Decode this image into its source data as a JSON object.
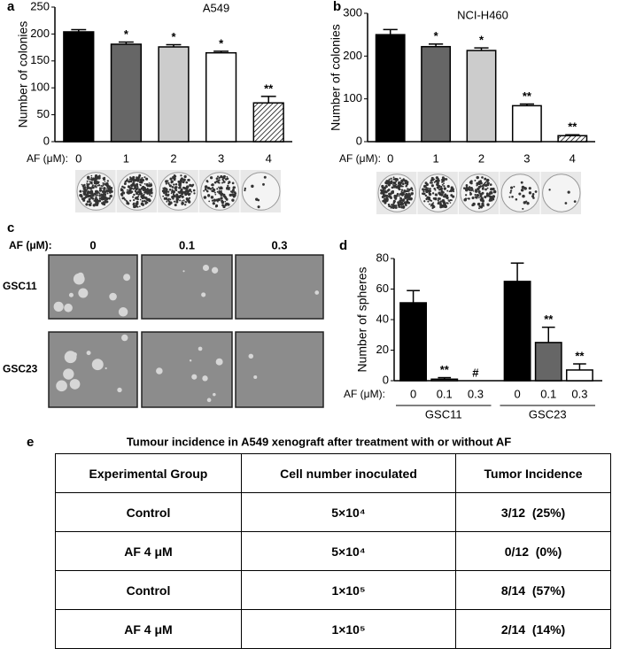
{
  "chart_data": [
    {
      "type": "bar",
      "panel": "a",
      "title": "A549",
      "ylabel": "Number of colonies",
      "x_label": "AF (μM):",
      "categories": [
        "0",
        "1",
        "2",
        "3",
        "4"
      ],
      "values": [
        204,
        181,
        176,
        165,
        72
      ],
      "errors": [
        4,
        4,
        4,
        3,
        12
      ],
      "annotations": [
        null,
        "*",
        "*",
        "*",
        "**"
      ],
      "colors": [
        "#000000",
        "#666666",
        "#cccccc",
        "#ffffff",
        "#ffffff"
      ],
      "patterns": [
        null,
        null,
        null,
        null,
        "hatch"
      ],
      "ylim": [
        0,
        250
      ],
      "yticks": [
        0,
        50,
        100,
        150,
        200,
        250
      ]
    },
    {
      "type": "bar",
      "panel": "b",
      "title": "NCI-H460",
      "ylabel": "Number of colonies",
      "x_label": "AF (μM):",
      "categories": [
        "0",
        "1",
        "2",
        "3",
        "4"
      ],
      "values": [
        250,
        222,
        213,
        84,
        14
      ],
      "errors": [
        12,
        6,
        6,
        4,
        2
      ],
      "annotations": [
        null,
        "*",
        "*",
        "**",
        "**"
      ],
      "colors": [
        "#000000",
        "#666666",
        "#cccccc",
        "#ffffff",
        "#ffffff"
      ],
      "patterns": [
        null,
        null,
        null,
        null,
        "hatch"
      ],
      "ylim": [
        0,
        300
      ],
      "yticks": [
        0,
        100,
        200,
        300
      ]
    },
    {
      "type": "bar",
      "panel": "d",
      "ylabel": "Number of spheres",
      "x_label": "AF (μM):",
      "categories": [
        "0",
        "0.1",
        "0.3",
        "0",
        "0.1",
        "0.3"
      ],
      "groups": [
        "GSC11",
        "GSC23"
      ],
      "values": [
        51,
        1,
        0,
        65,
        25,
        7
      ],
      "errors": [
        8,
        1,
        null,
        12,
        10,
        4
      ],
      "annotations": [
        null,
        "**",
        "#",
        null,
        "**",
        "**"
      ],
      "colors": [
        "#000000",
        "#666666",
        "#ffffff",
        "#000000",
        "#666666",
        "#ffffff"
      ],
      "ylim": [
        0,
        80
      ],
      "yticks": [
        0,
        20,
        40,
        60,
        80
      ]
    }
  ],
  "panel_c": {
    "label": "c",
    "x_label": "AF (μM):",
    "columns": [
      "0",
      "0.1",
      "0.3"
    ],
    "rows": [
      "GSC11",
      "GSC23"
    ]
  },
  "table": {
    "label": "e",
    "caption": "Tumour incidence in A549 xenograft after treatment with or without  AF",
    "header": [
      "Experimental Group",
      "Cell number inoculated",
      "Tumor Incidence"
    ],
    "rows": [
      [
        "Control",
        "5×10⁴",
        "3/12  (25%)"
      ],
      [
        "AF 4 μM",
        "5×10⁴",
        "0/12  (0%)"
      ],
      [
        "Control",
        "1×10⁵",
        "8/14  (57%)"
      ],
      [
        "AF 4 μM",
        "1×10⁵",
        "2/14  (14%)"
      ]
    ]
  }
}
